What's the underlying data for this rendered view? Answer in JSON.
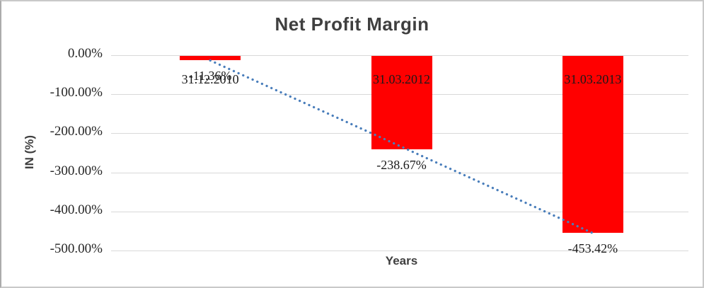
{
  "window": {
    "background_color": "#ffffff",
    "border_color": "#c9c9c9"
  },
  "chart_data": {
    "type": "bar",
    "title": "Net Profit Margin",
    "xlabel": "Years",
    "ylabel": "IN (%)",
    "categories": [
      "31.12.2010",
      "31.03.2012",
      "31.03.2013"
    ],
    "values": [
      -11.36,
      -238.67,
      -453.42
    ],
    "data_labels": [
      "-11.36%",
      "-238.67%",
      "-453.42%"
    ],
    "ylim": [
      0,
      -500
    ],
    "ytick_step": -100,
    "ytick_labels": [
      "0.00%",
      "-100.00%",
      "-200.00%",
      "-300.00%",
      "-400.00%",
      "-500.00%"
    ],
    "grid": true,
    "legend_position": "none",
    "bar_color": "#ff0000",
    "gridline_color": "#d9d9d9",
    "text_color": "#3f3f3f",
    "trendline": {
      "type": "linear",
      "style": "dotted",
      "color": "#4a7ebb",
      "series": "Net Profit Margin"
    }
  }
}
